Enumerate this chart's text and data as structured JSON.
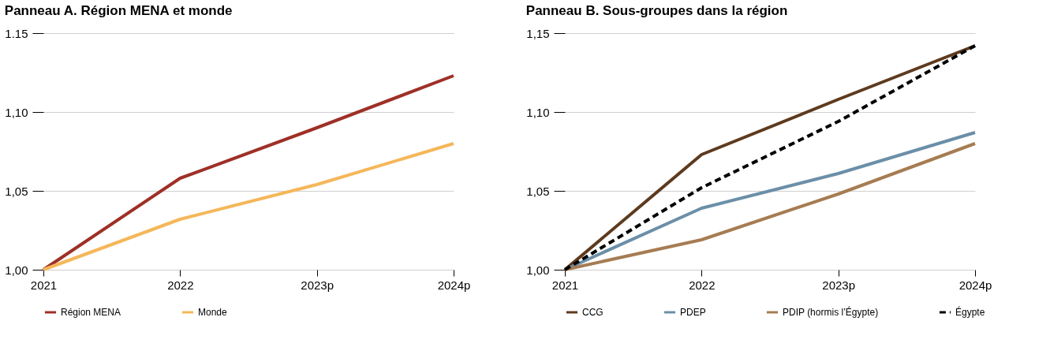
{
  "chart_data": [
    {
      "type": "line",
      "title": "Panneau A. Région MENA et monde",
      "categories": [
        "2021",
        "2022",
        "2023p",
        "2024p"
      ],
      "ylim": [
        1.0,
        1.15
      ],
      "yticks": [
        {
          "value": 1.0,
          "label": "1,00"
        },
        {
          "value": 1.05,
          "label": "1,05"
        },
        {
          "value": 1.1,
          "label": "1,10"
        },
        {
          "value": 1.15,
          "label": "1.15"
        }
      ],
      "grid": "y",
      "legend": "bottom",
      "series": [
        {
          "name": "Région MENA",
          "color": "#9e3027",
          "line_style": "solid",
          "values": [
            1.0,
            1.058,
            1.09,
            1.123
          ]
        },
        {
          "name": "Monde",
          "color": "#f5b75a",
          "line_style": "solid",
          "values": [
            1.0,
            1.032,
            1.054,
            1.08
          ]
        }
      ]
    },
    {
      "type": "line",
      "title": "Panneau B. Sous-groupes dans la région",
      "categories": [
        "2021",
        "2022",
        "2023p",
        "2024p"
      ],
      "ylim": [
        1.0,
        1.15
      ],
      "yticks": [
        {
          "value": 1.0,
          "label": "1,00"
        },
        {
          "value": 1.05,
          "label": "1,05"
        },
        {
          "value": 1.1,
          "label": "1,10"
        },
        {
          "value": 1.15,
          "label": "1,15"
        }
      ],
      "grid": "y",
      "legend": "bottom",
      "series": [
        {
          "name": "CCG",
          "color": "#5e3a1e",
          "line_style": "solid",
          "values": [
            1.0,
            1.073,
            1.108,
            1.142
          ]
        },
        {
          "name": "PDEP",
          "color": "#6b8fa8",
          "line_style": "solid",
          "values": [
            1.0,
            1.039,
            1.061,
            1.087
          ]
        },
        {
          "name": "PDIP (hormis l’Égypte)",
          "color": "#a67c52",
          "line_style": "solid",
          "values": [
            1.0,
            1.019,
            1.048,
            1.08
          ]
        },
        {
          "name": "Égypte",
          "color": "#000000",
          "line_style": "dashed",
          "values": [
            1.0,
            1.052,
            1.094,
            1.142
          ]
        }
      ]
    }
  ]
}
